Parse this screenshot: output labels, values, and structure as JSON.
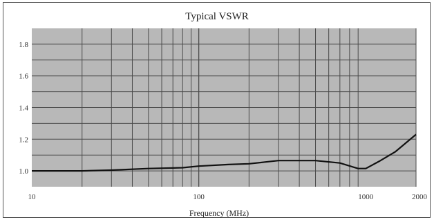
{
  "chart_data": {
    "type": "line",
    "title": "Typical VSWR",
    "xlabel": "Frequency (MHz)",
    "ylabel": "",
    "xscale": "log",
    "xlim": [
      10,
      2000
    ],
    "ylim": [
      0.9,
      1.9
    ],
    "x_tick_labels": [
      "10",
      "100",
      "1000",
      "2000"
    ],
    "y_tick_labels": [
      "1.0",
      "1.2",
      "1.4",
      "1.6",
      "1.8"
    ],
    "grid": true,
    "colors": {
      "plot_bg": "#b8b8b8",
      "grid": "#4a4a4a",
      "line": "#111111"
    },
    "series": [
      {
        "x": [
          10,
          20,
          30,
          50,
          80,
          100,
          150,
          200,
          300,
          500,
          700,
          900,
          1000,
          1200,
          1500,
          2000
        ],
        "y": [
          1.0,
          1.0,
          1.005,
          1.015,
          1.02,
          1.03,
          1.04,
          1.045,
          1.065,
          1.065,
          1.05,
          1.015,
          1.015,
          1.06,
          1.12,
          1.23
        ]
      }
    ]
  }
}
